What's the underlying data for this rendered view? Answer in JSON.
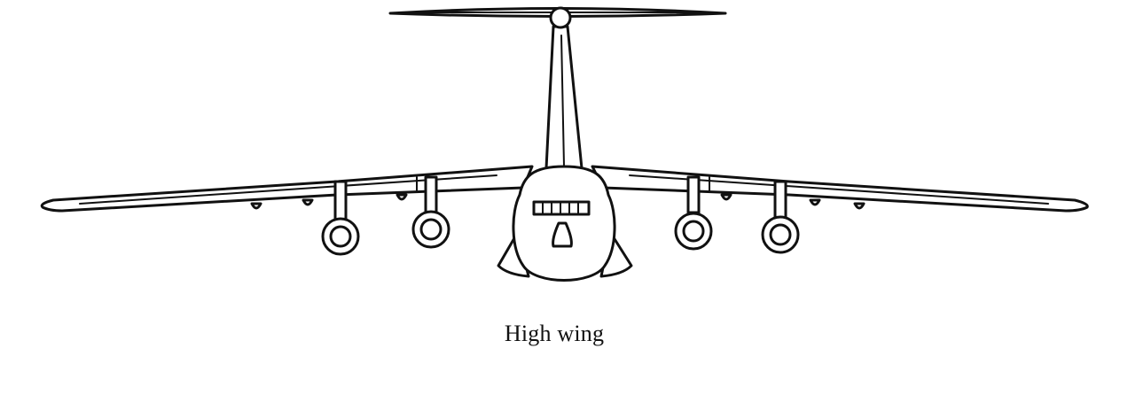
{
  "diagram": {
    "caption": "High wing",
    "subject": "aircraft-front-view",
    "ink_color": "#111111",
    "background_color": "#ffffff",
    "engines_count": 4
  }
}
